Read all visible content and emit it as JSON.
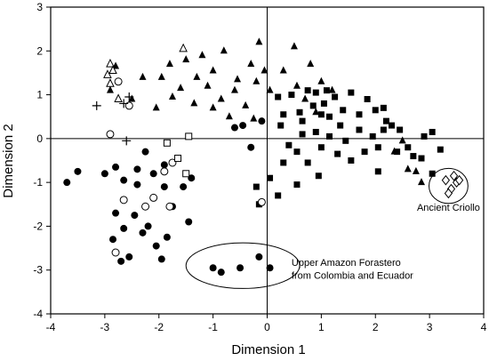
{
  "chart_data": {
    "type": "scatter",
    "title": "",
    "xlabel": "Dimension 1",
    "ylabel": "Dimension 2",
    "xlim": [
      -4,
      4
    ],
    "ylim": [
      -4,
      3
    ],
    "xticks": [
      "-4",
      "-3",
      "-2",
      "-1",
      "0",
      "1",
      "2",
      "3",
      "4"
    ],
    "yticks": [
      "-4",
      "-3",
      "-2",
      "-1",
      "0",
      "1",
      "2",
      "3"
    ],
    "reference_lines": {
      "x": 0,
      "y": 0
    },
    "grid": false,
    "legend": "none",
    "annotations": [
      {
        "text": "Ancient Criollo",
        "x": 3.35,
        "y": -1.65
      },
      {
        "text": "Upper Amazon Forastero",
        "x": 0.45,
        "y": -2.9
      },
      {
        "text": "from Colombia and Ecuador",
        "x": 0.45,
        "y": -3.2
      }
    ],
    "highlight_ellipses": [
      {
        "cx": -0.45,
        "cy": -2.9,
        "rx": 1.05,
        "ry": 0.52
      },
      {
        "cx": 3.35,
        "cy": -1.08,
        "rx": 0.36,
        "ry": 0.4
      }
    ],
    "series": [
      {
        "marker": "filled-triangle",
        "color": "#000000",
        "points": [
          [
            -1.8,
            1.7
          ],
          [
            -1.5,
            1.8
          ],
          [
            -1.3,
            1.4
          ],
          [
            -1.2,
            1.9
          ],
          [
            -1,
            1.55
          ],
          [
            -0.8,
            2
          ],
          [
            -0.55,
            1.35
          ],
          [
            -0.3,
            1.7
          ],
          [
            -0.15,
            2.2
          ],
          [
            -0.05,
            1.55
          ],
          [
            -1.6,
            1.15
          ],
          [
            -1.35,
            0.8
          ],
          [
            -1.1,
            1.2
          ],
          [
            -0.85,
            0.9
          ],
          [
            -0.6,
            1.1
          ],
          [
            -0.4,
            0.75
          ],
          [
            -0.2,
            1.3
          ],
          [
            0.05,
            1.1
          ],
          [
            -2.8,
            1.65
          ],
          [
            -2.9,
            1.1
          ],
          [
            -2.5,
            0.9
          ],
          [
            -2.3,
            1.4
          ],
          [
            -1.95,
            1.4
          ],
          [
            -2.05,
            0.7
          ],
          [
            -1.75,
            0.95
          ],
          [
            0.3,
            1.55
          ],
          [
            0.5,
            2.1
          ],
          [
            0.55,
            1.2
          ],
          [
            0.7,
            0.9
          ],
          [
            0.8,
            1.7
          ],
          [
            1.0,
            1.3
          ],
          [
            0.9,
            0.6
          ],
          [
            -0.7,
            0.5
          ],
          [
            -0.25,
            0.45
          ],
          [
            1.2,
            1.1
          ],
          [
            -1.0,
            0.7
          ],
          [
            2.35,
            -0.3
          ],
          [
            2.5,
            -0.05
          ],
          [
            2.6,
            -0.7
          ],
          [
            2.75,
            -0.75
          ],
          [
            2.85,
            -1.0
          ]
        ]
      },
      {
        "marker": "filled-square",
        "color": "#000000",
        "points": [
          [
            0.2,
            0.95
          ],
          [
            0.3,
            0.55
          ],
          [
            0.45,
            1.0
          ],
          [
            0.6,
            0.6
          ],
          [
            0.75,
            1.1
          ],
          [
            0.85,
            0.75
          ],
          [
            0.9,
            1.05
          ],
          [
            1.05,
            0.8
          ],
          [
            1.15,
            0.5
          ],
          [
            1.25,
            0.95
          ],
          [
            1.4,
            0.65
          ],
          [
            1.55,
            1.05
          ],
          [
            1.7,
            0.55
          ],
          [
            1.85,
            0.9
          ],
          [
            2.0,
            0.65
          ],
          [
            2.15,
            0.7
          ],
          [
            2.2,
            0.4
          ],
          [
            0.4,
            -0.15
          ],
          [
            0.55,
            -0.3
          ],
          [
            0.65,
            0.1
          ],
          [
            0.75,
            -0.55
          ],
          [
            0.9,
            0.15
          ],
          [
            1.0,
            -0.2
          ],
          [
            1.15,
            0.05
          ],
          [
            1.3,
            -0.35
          ],
          [
            1.45,
            -0.05
          ],
          [
            1.55,
            -0.5
          ],
          [
            1.7,
            0.2
          ],
          [
            1.8,
            -0.3
          ],
          [
            1.95,
            0.05
          ],
          [
            2.05,
            -0.2
          ],
          [
            2.15,
            0.2
          ],
          [
            2.3,
            0.3
          ],
          [
            2.4,
            -0.3
          ],
          [
            2.6,
            -0.2
          ],
          [
            2.7,
            -0.4
          ],
          [
            2.85,
            -0.45
          ],
          [
            2.9,
            0.05
          ],
          [
            3.05,
            0.15
          ],
          [
            3.2,
            -0.25
          ],
          [
            0.3,
            -0.55
          ],
          [
            0.05,
            -0.9
          ],
          [
            -0.2,
            -1.1
          ],
          [
            -0.15,
            -1.5
          ],
          [
            0.2,
            -1.3
          ],
          [
            0.55,
            -1.05
          ],
          [
            0.95,
            -0.85
          ],
          [
            0.65,
            0.4
          ],
          [
            1.35,
            0.3
          ],
          [
            2.05,
            -0.75
          ],
          [
            3.05,
            -0.8
          ],
          [
            2.45,
            0.2
          ],
          [
            1.1,
            1.1
          ],
          [
            0.25,
            0.3
          ],
          [
            1.0,
            0.55
          ]
        ]
      },
      {
        "marker": "filled-circle",
        "color": "#000000",
        "points": [
          [
            -3.7,
            -1.0
          ],
          [
            -3.5,
            -0.75
          ],
          [
            -3.0,
            -0.8
          ],
          [
            -2.8,
            -0.65
          ],
          [
            -2.65,
            -0.95
          ],
          [
            -2.4,
            -0.7
          ],
          [
            -2.25,
            -0.3
          ],
          [
            -2.1,
            -0.8
          ],
          [
            -1.9,
            -1.1
          ],
          [
            -1.9,
            -0.6
          ],
          [
            -1.55,
            -1.1
          ],
          [
            -1.4,
            -0.9
          ],
          [
            -2.4,
            -1.05
          ],
          [
            -2.8,
            -1.7
          ],
          [
            -2.65,
            -2.05
          ],
          [
            -2.55,
            -2.7
          ],
          [
            -2.85,
            -2.3
          ],
          [
            -2.7,
            -2.8
          ],
          [
            -2.45,
            -1.75
          ],
          [
            -2.2,
            -2.0
          ],
          [
            -2.3,
            -2.15
          ],
          [
            -2.05,
            -2.45
          ],
          [
            -1.95,
            -2.75
          ],
          [
            -1.85,
            -2.25
          ],
          [
            -1.75,
            -1.55
          ],
          [
            -1.45,
            -1.9
          ],
          [
            -0.6,
            0.25
          ],
          [
            -0.1,
            0.4
          ],
          [
            -0.45,
            0.3
          ],
          [
            -0.3,
            -0.2
          ],
          [
            -1.0,
            -2.95
          ],
          [
            -0.85,
            -3.05
          ],
          [
            -0.5,
            -2.95
          ],
          [
            -0.15,
            -2.7
          ],
          [
            0.05,
            -2.95
          ]
        ]
      },
      {
        "marker": "open-circle",
        "color": "#000000",
        "points": [
          [
            -2.75,
            1.3
          ],
          [
            -2.55,
            0.75
          ],
          [
            -2.9,
            0.1
          ],
          [
            -1.9,
            -0.75
          ],
          [
            -1.75,
            -0.55
          ],
          [
            -2.25,
            -1.55
          ],
          [
            -2.1,
            -1.35
          ],
          [
            -2.65,
            -1.4
          ],
          [
            -2.8,
            -2.6
          ],
          [
            -0.1,
            -1.45
          ],
          [
            -1.8,
            -1.55
          ]
        ]
      },
      {
        "marker": "open-triangle",
        "color": "#000000",
        "points": [
          [
            -1.55,
            2.05
          ],
          [
            -2.9,
            1.7
          ],
          [
            -2.95,
            1.45
          ],
          [
            -2.85,
            1.55
          ],
          [
            -2.75,
            0.9
          ],
          [
            -2.9,
            1.25
          ]
        ]
      },
      {
        "marker": "open-square",
        "color": "#000000",
        "points": [
          [
            -1.45,
            0.05
          ],
          [
            -1.85,
            -0.1
          ],
          [
            -1.65,
            -0.45
          ],
          [
            -1.5,
            -0.8
          ]
        ]
      },
      {
        "marker": "plus",
        "color": "#000000",
        "points": [
          [
            -3.15,
            0.75
          ],
          [
            -2.65,
            0.8
          ],
          [
            -2.55,
            0.95
          ],
          [
            -2.6,
            -0.05
          ]
        ]
      },
      {
        "marker": "open-diamond",
        "color": "#000000",
        "points": [
          [
            3.3,
            -0.95
          ],
          [
            3.4,
            -1.15
          ],
          [
            3.45,
            -0.85
          ],
          [
            3.5,
            -1.0
          ],
          [
            3.35,
            -1.25
          ],
          [
            3.55,
            -0.95
          ]
        ]
      }
    ]
  }
}
